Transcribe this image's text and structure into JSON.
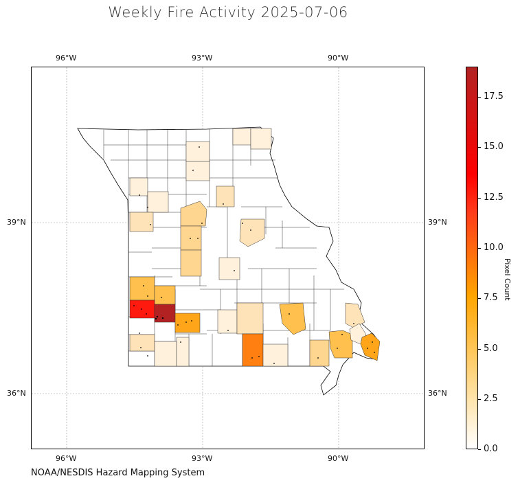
{
  "title": "Weekly Fire Activity 2025-07-06",
  "credit": "NOAA/NESDIS Hazard Mapping System",
  "lon_ticks": [
    "96°W",
    "93°W",
    "90°W"
  ],
  "lat_ticks": [
    "39°N",
    "36°N"
  ],
  "colorbar": {
    "label": "Pixel Count",
    "min": 0,
    "max": 19,
    "ticks": [
      "0.0",
      "2.5",
      "5.0",
      "7.5",
      "10.0",
      "12.5",
      "15.0",
      "17.5"
    ]
  },
  "colors": {
    "c1": "#fff1dc",
    "c2": "#ffe3b8",
    "c3": "#ffd68f",
    "c4": "#ffc04d",
    "c6": "#ffa51a",
    "c8": "#ff8010",
    "c14": "#ff1a10",
    "c19": "#b22222"
  },
  "chart_data": {
    "type": "choropleth",
    "title": "Weekly Fire Activity 2025-07-06",
    "region": "Missouri counties",
    "legend": "Pixel Count",
    "value_range": [
      0,
      19
    ],
    "grid": true
  }
}
